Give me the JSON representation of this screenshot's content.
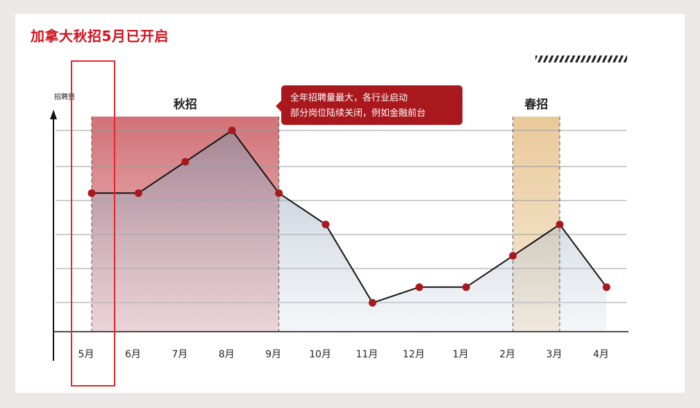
{
  "title": "加拿大秋招5月已开启",
  "chart_data": {
    "type": "line",
    "ylabel": "招聘量",
    "xlabel": "",
    "categories": [
      "5月",
      "6月",
      "7月",
      "8月",
      "9月",
      "10月",
      "11月",
      "12月",
      "1月",
      "2月",
      "3月",
      "4月"
    ],
    "values": [
      5,
      5,
      6,
      7,
      5,
      4,
      1.5,
      2,
      2,
      3,
      4,
      2
    ],
    "ylim": [
      1,
      7
    ],
    "grid": true,
    "highlights": [
      {
        "label": "秋招",
        "from": "5月",
        "to": "9月",
        "color": "#d26d71"
      },
      {
        "label": "春招",
        "from": "2月",
        "to": "3月",
        "color": "#ecd3ac"
      }
    ],
    "annotation": {
      "line1": "全年招聘量最大，各行业启动",
      "line2": "部分岗位陆续关闭，例如金融前台",
      "color": "#a8181d"
    },
    "selected_category": "5月",
    "line_color": "#111111",
    "point_color": "#a8181d"
  }
}
